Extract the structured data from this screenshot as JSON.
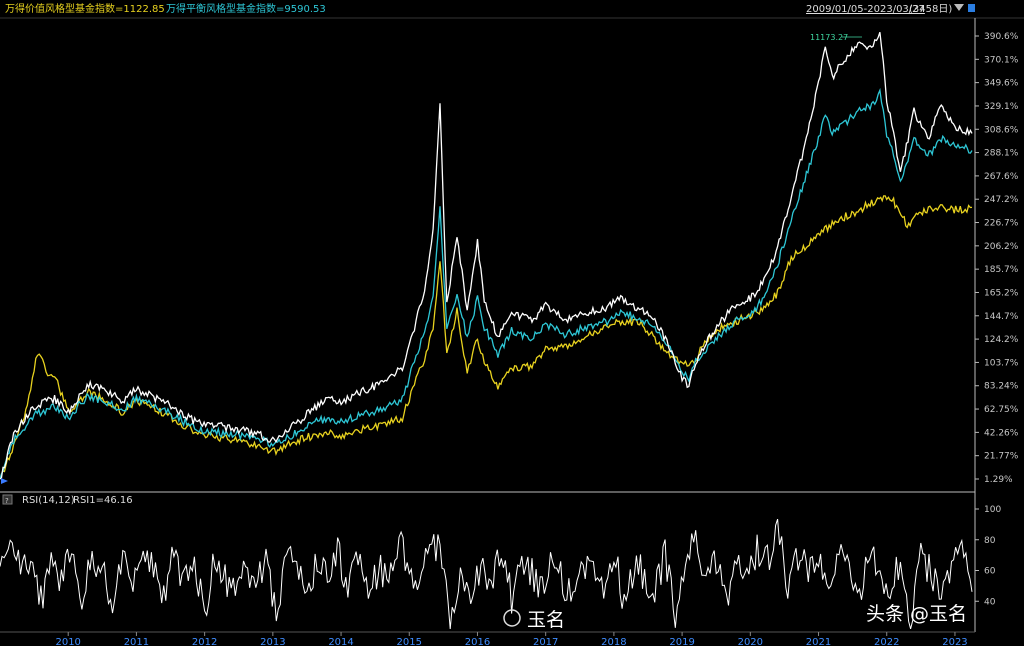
{
  "header": {
    "legend_value_style": "万得价值风格型基金指数=1122.85",
    "legend_balance_style": "万得平衡风格型基金指数=9590.53",
    "date_range": "2009/01/05-2023/03/27",
    "day_count": "(3458日)"
  },
  "annotation_max": "11173.27",
  "rsi_header": {
    "label": "RSI(14,12)",
    "value": "RSI1=46.16"
  },
  "watermarks": {
    "left": "玉名",
    "right": "头条 @玉名"
  },
  "colors": {
    "background": "#000000",
    "white_series": "#ffffff",
    "cyan_series": "#2ec7d6",
    "yellow_series": "#e8d21f",
    "axis_text": "#c8c8c8",
    "year_text": "#3f8dff"
  },
  "chart_data": [
    {
      "type": "line",
      "x_axis": "year",
      "xlim": [
        2009.0,
        2023.25
      ],
      "x_ticks": [
        "2010",
        "2011",
        "2012",
        "2013",
        "2014",
        "2015",
        "2016",
        "2017",
        "2018",
        "2019",
        "2020",
        "2021",
        "2022",
        "2023"
      ],
      "y_ticks": [
        "1.29%",
        "21.77%",
        "42.26%",
        "62.75%",
        "83.24%",
        "103.7%",
        "124.2%",
        "144.7%",
        "165.2%",
        "185.7%",
        "206.2%",
        "226.7%",
        "247.2%",
        "267.6%",
        "288.1%",
        "308.6%",
        "329.1%",
        "349.6%",
        "370.1%",
        "390.6%"
      ],
      "ylim": [
        1.29,
        390.6
      ],
      "series": [
        {
          "color": "white",
          "x": [
            2009.0,
            2009.2,
            2009.5,
            2009.8,
            2010.0,
            2010.3,
            2010.5,
            2010.8,
            2011.0,
            2011.3,
            2011.6,
            2011.9,
            2012.2,
            2012.5,
            2012.8,
            2013.0,
            2013.3,
            2013.5,
            2013.8,
            2014.0,
            2014.3,
            2014.6,
            2014.9,
            2015.0,
            2015.1,
            2015.25,
            2015.35,
            2015.45,
            2015.55,
            2015.7,
            2015.85,
            2016.0,
            2016.1,
            2016.3,
            2016.5,
            2016.8,
            2017.0,
            2017.3,
            2017.6,
            2017.9,
            2018.1,
            2018.4,
            2018.6,
            2018.8,
            2018.95,
            2019.1,
            2019.2,
            2019.4,
            2019.6,
            2019.8,
            2020.0,
            2020.2,
            2020.4,
            2020.6,
            2020.8,
            2021.0,
            2021.1,
            2021.2,
            2021.4,
            2021.6,
            2021.8,
            2021.9,
            2022.0,
            2022.1,
            2022.2,
            2022.4,
            2022.6,
            2022.8,
            2023.0,
            2023.25
          ],
          "y": [
            1.29,
            40,
            65,
            72,
            60,
            85,
            80,
            70,
            80,
            72,
            62,
            50,
            48,
            45,
            40,
            35,
            48,
            58,
            72,
            68,
            78,
            85,
            100,
            118,
            140,
            175,
            220,
            330,
            155,
            215,
            150,
            210,
            160,
            125,
            148,
            140,
            155,
            140,
            148,
            152,
            160,
            150,
            140,
            120,
            95,
            82,
            105,
            125,
            142,
            155,
            160,
            175,
            205,
            250,
            295,
            350,
            380,
            355,
            370,
            385,
            380,
            395,
            335,
            305,
            270,
            325,
            300,
            330,
            310,
            305
          ]
        },
        {
          "color": "cyan",
          "x": [
            2009.0,
            2009.2,
            2009.5,
            2009.8,
            2010.0,
            2010.3,
            2010.5,
            2010.8,
            2011.0,
            2011.3,
            2011.6,
            2011.9,
            2012.2,
            2012.5,
            2012.8,
            2013.0,
            2013.3,
            2013.5,
            2013.8,
            2014.0,
            2014.3,
            2014.6,
            2014.9,
            2015.0,
            2015.1,
            2015.25,
            2015.35,
            2015.45,
            2015.55,
            2015.7,
            2015.85,
            2016.0,
            2016.1,
            2016.3,
            2016.5,
            2016.8,
            2017.0,
            2017.3,
            2017.6,
            2017.9,
            2018.1,
            2018.4,
            2018.6,
            2018.8,
            2018.95,
            2019.1,
            2019.2,
            2019.4,
            2019.6,
            2019.8,
            2020.0,
            2020.2,
            2020.4,
            2020.6,
            2020.8,
            2021.0,
            2021.1,
            2021.2,
            2021.4,
            2021.6,
            2021.8,
            2021.9,
            2022.0,
            2022.1,
            2022.2,
            2022.4,
            2022.6,
            2022.8,
            2023.0,
            2023.25
          ],
          "y": [
            1.29,
            35,
            58,
            65,
            55,
            75,
            70,
            62,
            72,
            65,
            55,
            45,
            42,
            40,
            36,
            32,
            40,
            48,
            55,
            52,
            58,
            62,
            72,
            90,
            110,
            135,
            165,
            240,
            130,
            165,
            125,
            160,
            135,
            110,
            132,
            125,
            138,
            128,
            135,
            140,
            148,
            142,
            132,
            118,
            100,
            90,
            105,
            118,
            130,
            140,
            145,
            160,
            190,
            230,
            265,
            300,
            320,
            305,
            315,
            325,
            330,
            340,
            305,
            285,
            260,
            300,
            285,
            300,
            295,
            290
          ]
        },
        {
          "color": "yellow",
          "x": [
            2009.0,
            2009.2,
            2009.4,
            2009.55,
            2009.7,
            2009.8,
            2010.0,
            2010.3,
            2010.5,
            2010.8,
            2011.0,
            2011.3,
            2011.6,
            2011.9,
            2012.2,
            2012.5,
            2012.8,
            2013.0,
            2013.3,
            2013.5,
            2013.8,
            2014.0,
            2014.3,
            2014.6,
            2014.9,
            2015.0,
            2015.1,
            2015.25,
            2015.35,
            2015.45,
            2015.55,
            2015.7,
            2015.85,
            2016.0,
            2016.1,
            2016.3,
            2016.5,
            2016.8,
            2017.0,
            2017.3,
            2017.6,
            2017.9,
            2018.1,
            2018.4,
            2018.6,
            2018.8,
            2018.95,
            2019.1,
            2019.2,
            2019.4,
            2019.6,
            2019.8,
            2020.0,
            2020.2,
            2020.4,
            2020.6,
            2020.8,
            2021.0,
            2021.2,
            2021.4,
            2021.6,
            2021.8,
            2022.0,
            2022.1,
            2022.3,
            2022.5,
            2022.7,
            2022.9,
            2023.1,
            2023.25
          ],
          "y": [
            1.29,
            30,
            65,
            112,
            95,
            92,
            60,
            78,
            72,
            60,
            70,
            62,
            52,
            42,
            38,
            35,
            30,
            25,
            33,
            38,
            42,
            38,
            45,
            48,
            55,
            72,
            90,
            110,
            135,
            195,
            110,
            150,
            95,
            125,
            105,
            82,
            98,
            100,
            115,
            118,
            128,
            135,
            140,
            138,
            125,
            110,
            105,
            100,
            108,
            125,
            135,
            140,
            145,
            150,
            165,
            195,
            205,
            215,
            225,
            232,
            238,
            245,
            248,
            245,
            225,
            235,
            240,
            238,
            238,
            240
          ]
        }
      ]
    },
    {
      "type": "line",
      "title": "RSI(14,12)",
      "y_ticks": [
        "40",
        "60",
        "80",
        "100"
      ],
      "ylim": [
        20,
        100
      ],
      "series": [
        {
          "name": "RSI1",
          "color": "white",
          "x": [
            2009.0,
            2009.15,
            2009.3,
            2009.45,
            2009.6,
            2009.75,
            2009.9,
            2010.05,
            2010.2,
            2010.35,
            2010.5,
            2010.65,
            2010.8,
            2010.95,
            2011.1,
            2011.25,
            2011.4,
            2011.55,
            2011.7,
            2011.85,
            2012.0,
            2012.15,
            2012.3,
            2012.45,
            2012.6,
            2012.75,
            2012.9,
            2013.05,
            2013.2,
            2013.35,
            2013.5,
            2013.65,
            2013.8,
            2013.95,
            2014.1,
            2014.25,
            2014.4,
            2014.55,
            2014.7,
            2014.85,
            2015.0,
            2015.15,
            2015.3,
            2015.45,
            2015.6,
            2015.75,
            2015.9,
            2016.05,
            2016.2,
            2016.35,
            2016.5,
            2016.65,
            2016.8,
            2016.95,
            2017.1,
            2017.25,
            2017.4,
            2017.55,
            2017.7,
            2017.85,
            2018.0,
            2018.15,
            2018.3,
            2018.45,
            2018.6,
            2018.75,
            2018.9,
            2019.05,
            2019.2,
            2019.35,
            2019.5,
            2019.65,
            2019.8,
            2019.95,
            2020.1,
            2020.25,
            2020.4,
            2020.55,
            2020.7,
            2020.85,
            2021.0,
            2021.15,
            2021.3,
            2021.45,
            2021.6,
            2021.75,
            2021.9,
            2022.05,
            2022.2,
            2022.35,
            2022.5,
            2022.65,
            2022.8,
            2022.95,
            2023.1,
            2023.25
          ],
          "y": [
            55,
            80,
            60,
            70,
            40,
            65,
            55,
            72,
            45,
            66,
            58,
            40,
            70,
            52,
            68,
            60,
            45,
            72,
            50,
            62,
            35,
            68,
            55,
            42,
            60,
            48,
            70,
            30,
            75,
            60,
            45,
            68,
            58,
            72,
            50,
            65,
            40,
            62,
            55,
            78,
            66,
            48,
            82,
            70,
            25,
            60,
            35,
            66,
            50,
            72,
            42,
            68,
            58,
            45,
            70,
            52,
            40,
            66,
            55,
            48,
            75,
            35,
            62,
            58,
            45,
            70,
            30,
            60,
            85,
            50,
            68,
            40,
            62,
            55,
            75,
            66,
            88,
            50,
            70,
            58,
            65,
            45,
            80,
            55,
            38,
            72,
            60,
            48,
            66,
            30,
            70,
            58,
            45,
            62,
            72,
            46.16
          ]
        }
      ]
    }
  ]
}
